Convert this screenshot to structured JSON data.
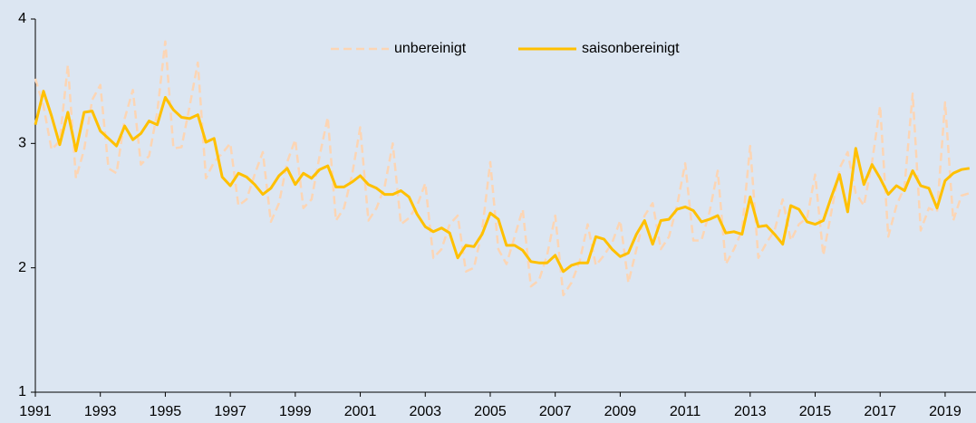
{
  "chart_data": {
    "type": "line",
    "x": [
      1991,
      1991.25,
      1991.5,
      1991.75,
      1992,
      1992.25,
      1992.5,
      1992.75,
      1993,
      1993.25,
      1993.5,
      1993.75,
      1994,
      1994.25,
      1994.5,
      1994.75,
      1995,
      1995.25,
      1995.5,
      1995.75,
      1996,
      1996.25,
      1996.5,
      1996.75,
      1997,
      1997.25,
      1997.5,
      1997.75,
      1998,
      1998.25,
      1998.5,
      1998.75,
      1999,
      1999.25,
      1999.5,
      1999.75,
      2000,
      2000.25,
      2000.5,
      2000.75,
      2001,
      2001.25,
      2001.5,
      2001.75,
      2002,
      2002.25,
      2002.5,
      2002.75,
      2003,
      2003.25,
      2003.5,
      2003.75,
      2004,
      2004.25,
      2004.5,
      2004.75,
      2005,
      2005.25,
      2005.5,
      2005.75,
      2006,
      2006.25,
      2006.5,
      2006.75,
      2007,
      2007.25,
      2007.5,
      2007.75,
      2008,
      2008.25,
      2008.5,
      2008.75,
      2009,
      2009.25,
      2009.5,
      2009.75,
      2010,
      2010.25,
      2010.5,
      2010.75,
      2011,
      2011.25,
      2011.5,
      2011.75,
      2012,
      2012.25,
      2012.5,
      2012.75,
      2013,
      2013.25,
      2013.5,
      2013.75,
      2014,
      2014.25,
      2014.5,
      2014.75,
      2015,
      2015.25,
      2015.5,
      2015.75,
      2016,
      2016.25,
      2016.5,
      2016.75,
      2017,
      2017.25,
      2017.5,
      2017.75,
      2018,
      2018.25,
      2018.5,
      2018.75,
      2019,
      2019.25,
      2019.5,
      2019.75
    ],
    "series": [
      {
        "name": "unbereinigt",
        "color": "#fcd5b4",
        "dashed": true,
        "values": [
          3.52,
          3.3,
          2.95,
          3.02,
          3.63,
          2.72,
          2.95,
          3.35,
          3.47,
          2.8,
          2.76,
          3.2,
          3.43,
          2.83,
          2.9,
          3.25,
          3.82,
          2.96,
          2.97,
          3.3,
          3.65,
          2.72,
          2.85,
          2.92,
          3.0,
          2.5,
          2.55,
          2.75,
          2.93,
          2.37,
          2.52,
          2.85,
          3.03,
          2.48,
          2.55,
          2.9,
          3.21,
          2.38,
          2.48,
          2.75,
          3.13,
          2.38,
          2.48,
          2.65,
          3.0,
          2.35,
          2.4,
          2.5,
          2.68,
          2.08,
          2.15,
          2.35,
          2.42,
          1.97,
          2.0,
          2.3,
          2.85,
          2.15,
          2.03,
          2.25,
          2.47,
          1.85,
          1.9,
          2.1,
          2.42,
          1.78,
          1.88,
          2.05,
          2.35,
          2.02,
          2.1,
          2.2,
          2.38,
          1.88,
          2.15,
          2.42,
          2.52,
          2.15,
          2.25,
          2.5,
          2.84,
          2.22,
          2.22,
          2.45,
          2.78,
          2.03,
          2.15,
          2.3,
          2.98,
          2.08,
          2.2,
          2.3,
          2.55,
          2.22,
          2.35,
          2.4,
          2.75,
          2.1,
          2.45,
          2.8,
          2.93,
          2.6,
          2.5,
          2.85,
          3.3,
          2.25,
          2.5,
          2.65,
          3.4,
          2.3,
          2.48,
          2.45,
          3.33,
          2.38,
          2.58,
          2.6
        ]
      },
      {
        "name": "saisonbereinigt",
        "color": "#ffc000",
        "dashed": false,
        "values": [
          3.15,
          3.42,
          3.22,
          2.99,
          3.25,
          2.94,
          3.25,
          3.26,
          3.1,
          3.04,
          2.98,
          3.14,
          3.03,
          3.08,
          3.18,
          3.15,
          3.37,
          3.27,
          3.21,
          3.2,
          3.23,
          3.01,
          3.04,
          2.73,
          2.66,
          2.76,
          2.73,
          2.67,
          2.59,
          2.64,
          2.74,
          2.8,
          2.67,
          2.76,
          2.72,
          2.79,
          2.82,
          2.65,
          2.65,
          2.69,
          2.74,
          2.67,
          2.64,
          2.59,
          2.59,
          2.62,
          2.57,
          2.43,
          2.33,
          2.29,
          2.32,
          2.28,
          2.08,
          2.18,
          2.17,
          2.27,
          2.44,
          2.39,
          2.18,
          2.18,
          2.14,
          2.05,
          2.04,
          2.04,
          2.1,
          1.97,
          2.02,
          2.04,
          2.04,
          2.25,
          2.23,
          2.15,
          2.09,
          2.12,
          2.27,
          2.38,
          2.19,
          2.38,
          2.39,
          2.47,
          2.49,
          2.46,
          2.37,
          2.39,
          2.42,
          2.28,
          2.29,
          2.27,
          2.57,
          2.33,
          2.34,
          2.27,
          2.19,
          2.5,
          2.47,
          2.37,
          2.35,
          2.38,
          2.57,
          2.75,
          2.45,
          2.96,
          2.67,
          2.83,
          2.72,
          2.59,
          2.66,
          2.62,
          2.78,
          2.66,
          2.64,
          2.48,
          2.7,
          2.76,
          2.79,
          2.8
        ]
      }
    ],
    "xlim": [
      1991,
      2019.95
    ],
    "xticks": [
      1991,
      1993,
      1995,
      1997,
      1999,
      2001,
      2003,
      2005,
      2007,
      2009,
      2011,
      2013,
      2015,
      2017,
      2019
    ],
    "ylim": [
      1,
      4
    ],
    "yticks": [
      1,
      2,
      3,
      4
    ],
    "legend": "top"
  }
}
